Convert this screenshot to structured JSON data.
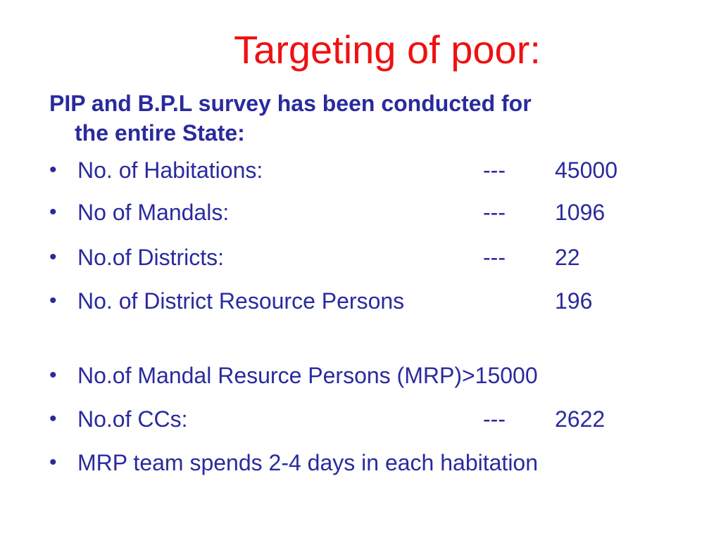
{
  "slide": {
    "title": "Targeting of poor:",
    "lead_line1": "PIP and B.P.L survey has been conducted  for",
    "lead_line2": "the entire State:",
    "bullet_symbol": "•",
    "items": [
      {
        "label": "No. of Habitations:",
        "dash": "---",
        "value": "45000"
      },
      {
        "label": "No of Mandals:",
        "dash": "---",
        "value": "1096"
      },
      {
        "label": "No.of Districts:",
        "dash": "---",
        "value": "22"
      },
      {
        "label": "No. of District Resource Persons",
        "dash": "",
        "value": "196"
      },
      {
        "label": "No.of Mandal Resurce Persons (MRP)>15000",
        "dash": "",
        "value": ""
      },
      {
        "label": "No.of CCs:",
        "dash": "---",
        "value": "2622"
      },
      {
        "label": "MRP team spends 2-4 days in each habitation",
        "dash": "",
        "value": ""
      }
    ]
  },
  "colors": {
    "title": "#ee1111",
    "body_text": "#2a2a9e",
    "background": "#ffffff"
  }
}
